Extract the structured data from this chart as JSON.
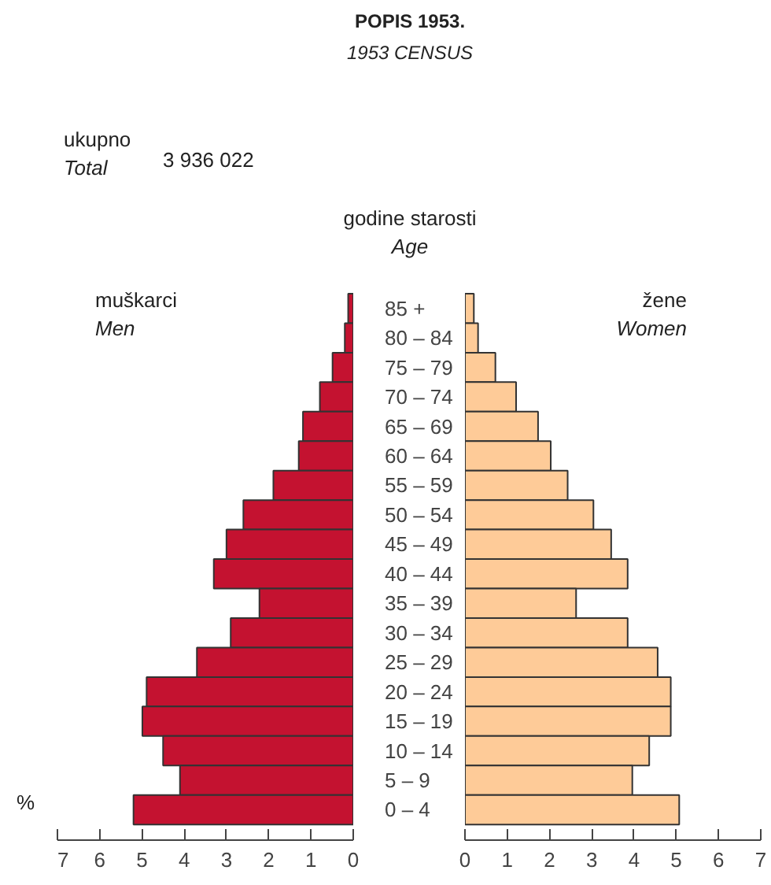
{
  "chart_data": [
    {
      "type": "bar",
      "orientation": "horizontal",
      "title": "POPIS 1953.",
      "subtitle": "1953 CENSUS",
      "annotations": [
        "ukupno\nTotal",
        "3 936 022"
      ],
      "ylabel": "godine starosti\nAge",
      "xlabel": "%",
      "categories": [
        "85 +",
        "80 – 84",
        "75 – 79",
        "70 – 74",
        "65 – 69",
        "60 – 64",
        "55 – 59",
        "50 – 54",
        "45 – 49",
        "40 – 44",
        "35 – 39",
        "30 – 34",
        "25 – 29",
        "20 – 24",
        "15 – 19",
        "10 – 14",
        "5 – 9",
        "0 – 4"
      ],
      "series": [
        {
          "name": "muškarci\nMen",
          "color": "#c41230",
          "values": [
            0.12,
            0.2,
            0.49,
            0.79,
            1.19,
            1.29,
            1.89,
            2.6,
            3.0,
            3.3,
            2.22,
            2.9,
            3.7,
            4.89,
            4.99,
            4.5,
            4.1,
            5.2
          ]
        }
      ],
      "xlim": [
        7,
        0
      ],
      "xticks": [
        0,
        1,
        2,
        3,
        4,
        5,
        6,
        7
      ]
    },
    {
      "type": "bar",
      "orientation": "horizontal",
      "tick_labels": "x",
      "series": [
        {
          "name": "žene\nWomen",
          "color": "#fecb98",
          "values": [
            0.21,
            0.31,
            0.72,
            1.21,
            1.73,
            2.03,
            2.43,
            3.04,
            3.46,
            3.85,
            2.63,
            3.85,
            4.56,
            4.87,
            4.87,
            4.36,
            3.96,
            5.07
          ]
        }
      ],
      "xlim": [
        0,
        7
      ],
      "xticks": [
        0,
        1,
        2,
        3,
        4,
        5,
        6,
        7
      ]
    }
  ]
}
